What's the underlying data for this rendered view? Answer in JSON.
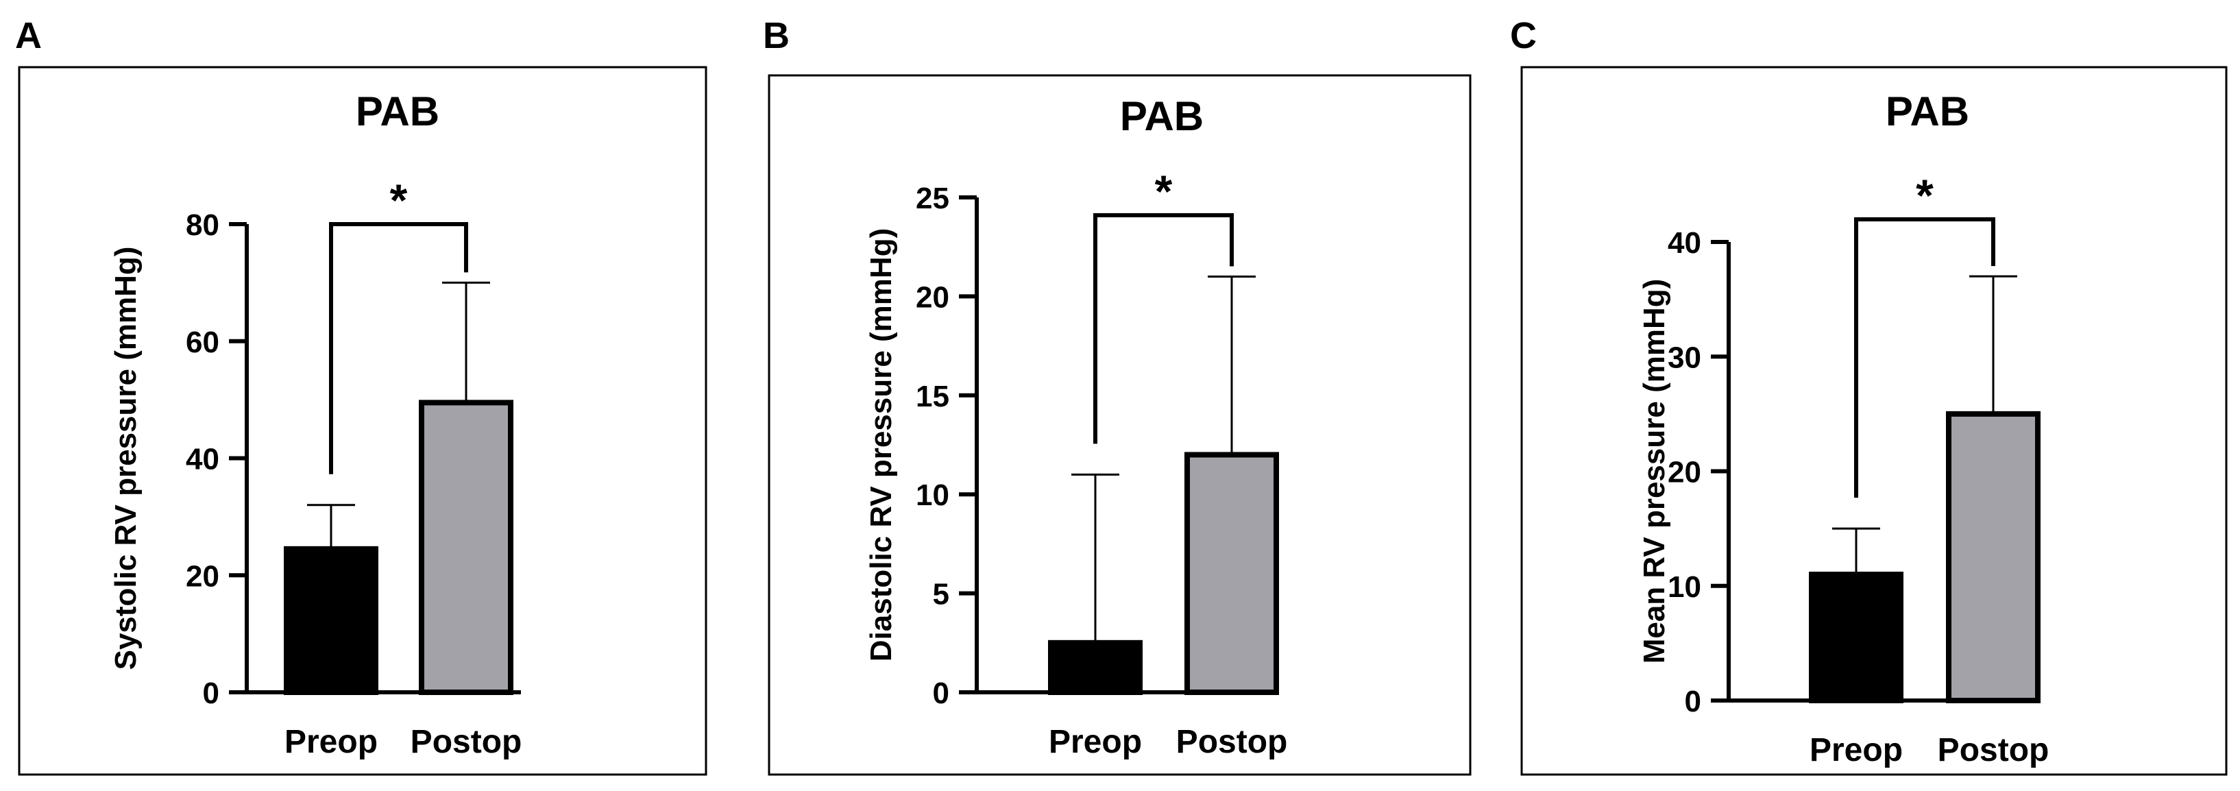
{
  "colors": {
    "preop": "#000000",
    "postop": "#a3a2a8",
    "axis": "#000000",
    "frame": "#000000"
  },
  "chart_data": [
    {
      "type": "bar",
      "panel": "A",
      "title": "PAB",
      "ylabel": "Systolic RV pressure (mmHg)",
      "categories": [
        "Preop",
        "Postop"
      ],
      "values": [
        24.5,
        49.5
      ],
      "error_upper": [
        32,
        70
      ],
      "ylim": [
        0,
        80
      ],
      "yticks": [
        0,
        20,
        40,
        60,
        80
      ],
      "significance": "*",
      "grid": false
    },
    {
      "type": "bar",
      "panel": "B",
      "title": "PAB",
      "ylabel": "Diastolic RV pressure (mmHg)",
      "categories": [
        "Preop",
        "Postop"
      ],
      "values": [
        2.5,
        12
      ],
      "error_upper": [
        11,
        21
      ],
      "ylim": [
        0,
        25
      ],
      "yticks": [
        0,
        5,
        10,
        15,
        20,
        25
      ],
      "significance": "*",
      "grid": false
    },
    {
      "type": "bar",
      "panel": "C",
      "title": "PAB",
      "ylabel": "Mean RV pressure (mmHg)",
      "categories": [
        "Preop",
        "Postop"
      ],
      "values": [
        11,
        25
      ],
      "error_upper": [
        15,
        37
      ],
      "ylim": [
        0,
        40
      ],
      "yticks": [
        0,
        10,
        20,
        30,
        40
      ],
      "significance": "*",
      "grid": false
    }
  ]
}
